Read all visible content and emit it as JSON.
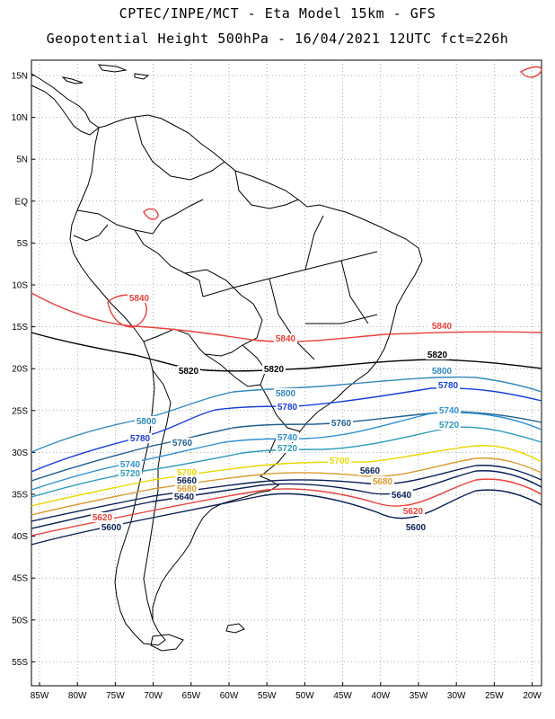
{
  "header": {
    "line1": "CPTEC/INPE/MCT -  Eta Model 15km - GFS",
    "line2": "Geopotential Height 500hPa - 16/04/2021 12UTC fct=226h"
  },
  "map": {
    "lat_labels": [
      "15N",
      "10N",
      "5N",
      "EQ",
      "5S",
      "10S",
      "15S",
      "20S",
      "25S",
      "30S",
      "35S",
      "40S",
      "45S",
      "50S",
      "55S"
    ],
    "lon_labels": [
      "85W",
      "80W",
      "75W",
      "70W",
      "65W",
      "60W",
      "55W",
      "50W",
      "45W",
      "40W",
      "35W",
      "30W",
      "25W",
      "20W"
    ],
    "gridlines": true,
    "contour_interval_m": 20,
    "contour_labels": [
      {
        "text": "5840",
        "color": "#e8403a"
      },
      {
        "text": "5840",
        "color": "#e8403a"
      },
      {
        "text": "5840",
        "color": "#e8403a"
      },
      {
        "text": "5820",
        "color": "#000000"
      },
      {
        "text": "5820",
        "color": "#000000"
      },
      {
        "text": "5820",
        "color": "#000000"
      },
      {
        "text": "5800",
        "color": "#3388bb"
      },
      {
        "text": "5800",
        "color": "#3388bb"
      },
      {
        "text": "5800",
        "color": "#3388bb"
      },
      {
        "text": "5780",
        "color": "#1a3fd6"
      },
      {
        "text": "5780",
        "color": "#1a3fd6"
      },
      {
        "text": "5780",
        "color": "#1a3fd6"
      },
      {
        "text": "5760",
        "color": "#1f5f8f"
      },
      {
        "text": "5760",
        "color": "#1f5f8f"
      },
      {
        "text": "5740",
        "color": "#2f8fd0"
      },
      {
        "text": "5740",
        "color": "#2f8fd0"
      },
      {
        "text": "5740",
        "color": "#2f8fd0"
      },
      {
        "text": "5720",
        "color": "#2a9ab8"
      },
      {
        "text": "5720",
        "color": "#2a9ab8"
      },
      {
        "text": "5720",
        "color": "#2a9ab8"
      },
      {
        "text": "5700",
        "color": "#e8d800"
      },
      {
        "text": "5700",
        "color": "#e8d800"
      },
      {
        "text": "5680",
        "color": "#d89a30"
      },
      {
        "text": "5680",
        "color": "#d89a30"
      },
      {
        "text": "5660",
        "color": "#0a1f55"
      },
      {
        "text": "5660",
        "color": "#0a1f55"
      },
      {
        "text": "5640",
        "color": "#0a1f55"
      },
      {
        "text": "5640",
        "color": "#0a1f55"
      },
      {
        "text": "5620",
        "color": "#e8403a"
      },
      {
        "text": "5620",
        "color": "#e8403a"
      },
      {
        "text": "5600",
        "color": "#0a1f55"
      },
      {
        "text": "5600",
        "color": "#0a1f55"
      }
    ]
  }
}
